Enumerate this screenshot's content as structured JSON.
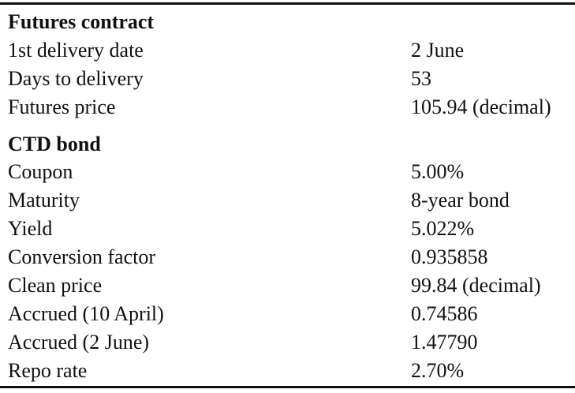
{
  "futures_contract": {
    "heading": "Futures contract",
    "rows": [
      {
        "label": "1st delivery date",
        "value": "2 June"
      },
      {
        "label": "Days to delivery",
        "value": "53"
      },
      {
        "label": "Futures price",
        "value": "105.94 (decimal)"
      }
    ]
  },
  "ctd_bond": {
    "heading": "CTD bond",
    "rows": [
      {
        "label": "Coupon",
        "value": "5.00%"
      },
      {
        "label": "Maturity",
        "value": "8-year bond"
      },
      {
        "label": "Yield",
        "value": "5.022%"
      },
      {
        "label": "Conversion factor",
        "value": "0.935858"
      },
      {
        "label": "Clean price",
        "value": "99.84 (decimal)"
      },
      {
        "label": "Accrued (10 April)",
        "value": "0.74586"
      },
      {
        "label": "Accrued (2 June)",
        "value": "1.47790"
      },
      {
        "label": "Repo rate",
        "value": "2.70%"
      }
    ]
  }
}
